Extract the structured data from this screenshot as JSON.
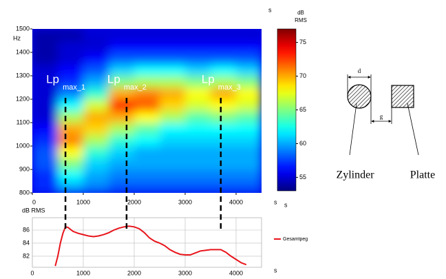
{
  "chart_data": [
    {
      "type": "heatmap",
      "x": [
        250,
        750,
        1250,
        1750,
        2250,
        2750,
        3250,
        3750,
        4250
      ],
      "y": [
        825,
        875,
        925,
        975,
        1025,
        1075,
        1125,
        1175,
        1225,
        1275,
        1325,
        1375,
        1425,
        1475
      ],
      "z": [
        [
          57,
          60,
          59,
          58,
          58,
          58,
          58,
          58,
          58
        ],
        [
          57,
          62,
          60,
          59,
          59,
          59,
          59,
          59,
          59
        ],
        [
          58,
          65,
          61,
          60,
          60,
          60,
          60,
          60,
          60
        ],
        [
          58,
          68,
          63,
          61,
          60,
          60,
          60,
          60,
          60
        ],
        [
          57,
          71,
          66,
          63,
          62,
          61,
          61,
          61,
          61
        ],
        [
          56,
          70,
          69,
          66,
          64,
          62,
          62,
          62,
          62
        ],
        [
          55,
          66,
          70,
          70,
          68,
          66,
          64,
          65,
          64
        ],
        [
          55,
          62,
          67,
          74,
          72,
          69,
          67,
          68,
          67
        ],
        [
          55,
          59,
          63,
          70,
          71,
          70,
          68,
          70,
          68
        ],
        [
          55,
          57,
          60,
          65,
          66,
          66,
          65,
          66,
          65
        ],
        [
          55,
          56,
          58,
          61,
          62,
          62,
          61,
          62,
          61
        ],
        [
          54,
          55,
          56,
          58,
          58,
          58,
          58,
          58,
          58
        ],
        [
          54,
          55,
          55,
          56,
          56,
          56,
          56,
          56,
          56
        ],
        [
          54,
          54,
          55,
          55,
          55,
          55,
          55,
          55,
          55
        ]
      ],
      "xlim": [
        0,
        4500
      ],
      "ylim": [
        800,
        1500
      ],
      "xticks": [
        0,
        1000,
        2000,
        3000,
        4000
      ],
      "yticks": [
        800,
        900,
        1000,
        1100,
        1200,
        1300,
        1400,
        1500
      ],
      "xlabel": "s",
      "ylabel": "Hz",
      "top_unit": "s",
      "colorbar": {
        "label": [
          "dB",
          "RMS"
        ],
        "lim": [
          53,
          77
        ],
        "ticks": [
          55,
          60,
          65,
          70,
          75
        ],
        "unit": "s"
      },
      "annotations": [
        {
          "text": "Lp",
          "sub": "max_1",
          "x": 650
        },
        {
          "text": "Lp",
          "sub": "max_2",
          "x": 1850
        },
        {
          "text": "Lp",
          "sub": "max_3",
          "x": 3700
        }
      ]
    },
    {
      "type": "line",
      "x": [
        450,
        500,
        550,
        600,
        650,
        700,
        800,
        900,
        1000,
        1100,
        1200,
        1300,
        1400,
        1500,
        1600,
        1700,
        1800,
        1900,
        2000,
        2100,
        2200,
        2300,
        2400,
        2500,
        2600,
        2700,
        2800,
        2900,
        3000,
        3100,
        3200,
        3300,
        3400,
        3500,
        3600,
        3700,
        3800,
        3900,
        4000,
        4100,
        4200
      ],
      "series": [
        {
          "name": "Gesamtpeg",
          "color": "#e8141b",
          "values": [
            80.5,
            82,
            84,
            85.5,
            86.5,
            86.4,
            85.8,
            85.5,
            85.3,
            85.1,
            85.0,
            85.1,
            85.3,
            85.6,
            86.0,
            86.3,
            86.5,
            86.6,
            86.5,
            86.2,
            85.6,
            84.8,
            84.3,
            84.0,
            83.6,
            83.0,
            82.6,
            82.3,
            82.2,
            82.2,
            82.5,
            82.8,
            82.9,
            83.0,
            83.0,
            83.0,
            82.6,
            82.0,
            81.5,
            81.0,
            80.7
          ]
        }
      ],
      "xlim": [
        0,
        4500
      ],
      "ylim": [
        80.3,
        87.9
      ],
      "xticks": [
        0,
        1000,
        2000,
        3000,
        4000
      ],
      "yticks": [
        82,
        84,
        86
      ],
      "xlabel": "s",
      "ylabel": "dB RMS",
      "grid": true,
      "legend": "right"
    }
  ],
  "diagram": {
    "dimension": "d",
    "gap": "g",
    "cylinder": "Zylinder",
    "plate": "Platte"
  }
}
